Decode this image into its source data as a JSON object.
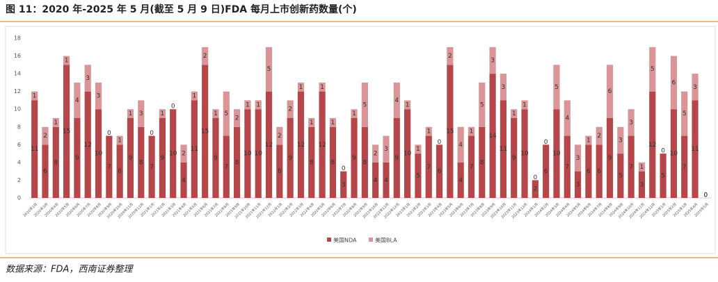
{
  "chart_data": {
    "type": "stacked_bar",
    "title": "图 11：2020 年-2025 年 5 月(截至 5 月 9 日)FDA 每月上市创新药数量(个)",
    "source": "数据来源：FDA，西南证券整理",
    "categories": [
      "2020年2月",
      "2020年3月",
      "2020年4月",
      "2020年5月",
      "2020年6月",
      "2020年7月",
      "2020年8月",
      "2020年9月",
      "2020年10月",
      "2020年11月",
      "2020年12月",
      "2021年1月",
      "2021年2月",
      "2021年3月",
      "2021年4月",
      "2021年5月",
      "2021年6月",
      "2021年7月",
      "2021年8月",
      "2021年9月",
      "2021年10月",
      "2021年11月",
      "2021年12月",
      "2022年1月",
      "2022年2月",
      "2022年3月",
      "2022年4月",
      "2022年5月",
      "2022年6月",
      "2022年7月",
      "2022年8月",
      "2022年9月",
      "2022年10月",
      "2022年11月",
      "2022年12月",
      "2023年1月",
      "2023年2月",
      "2023年3月",
      "2023年4月",
      "2023年5月",
      "2023年6月",
      "2023年7月",
      "2023年8月",
      "2023年9月",
      "2023年10月",
      "2023年11月",
      "2023年12月",
      "2024年1月",
      "2024年2月",
      "2024年3月",
      "2024年4月",
      "2024年5月",
      "2024年6月",
      "2024年7月",
      "2024年8月",
      "2024年9月",
      "2024年10月",
      "2024年11月",
      "2024年12月",
      "2025年1月",
      "2025年2月",
      "2025年3月",
      "2025年4月",
      "2025年5月"
    ],
    "series": [
      {
        "name": "美国NDA",
        "color": "#b5474b",
        "values": [
          11,
          6,
          8,
          15,
          9,
          12,
          10,
          7,
          6,
          9,
          8,
          7,
          9,
          10,
          4,
          11,
          15,
          9,
          7,
          8,
          10,
          10,
          12,
          6,
          9,
          12,
          8,
          12,
          8,
          3,
          9,
          8,
          4,
          4,
          9,
          10,
          5,
          7,
          6,
          15,
          4,
          7,
          8,
          14,
          11,
          9,
          10,
          2,
          6,
          10,
          7,
          3,
          6,
          6,
          9,
          5,
          7,
          3,
          12,
          5,
          10,
          7,
          11,
          0
        ]
      },
      {
        "name": "美国BLA",
        "color": "#d99597",
        "values": [
          1,
          2,
          1,
          1,
          4,
          3,
          3,
          0,
          1,
          1,
          3,
          0,
          1,
          0,
          2,
          1,
          2,
          1,
          5,
          2,
          1,
          1,
          5,
          2,
          2,
          1,
          1,
          1,
          1,
          0,
          1,
          5,
          2,
          3,
          4,
          1,
          1,
          1,
          0,
          2,
          4,
          1,
          5,
          3,
          3,
          1,
          1,
          0,
          0,
          5,
          4,
          3,
          1,
          2,
          6,
          3,
          3,
          1,
          5,
          0,
          6,
          5,
          3,
          0
        ]
      }
    ],
    "ylim": [
      0,
      18
    ],
    "yticks": [
      0,
      2,
      4,
      6,
      8,
      10,
      12,
      14,
      16,
      18
    ],
    "grid": false
  }
}
